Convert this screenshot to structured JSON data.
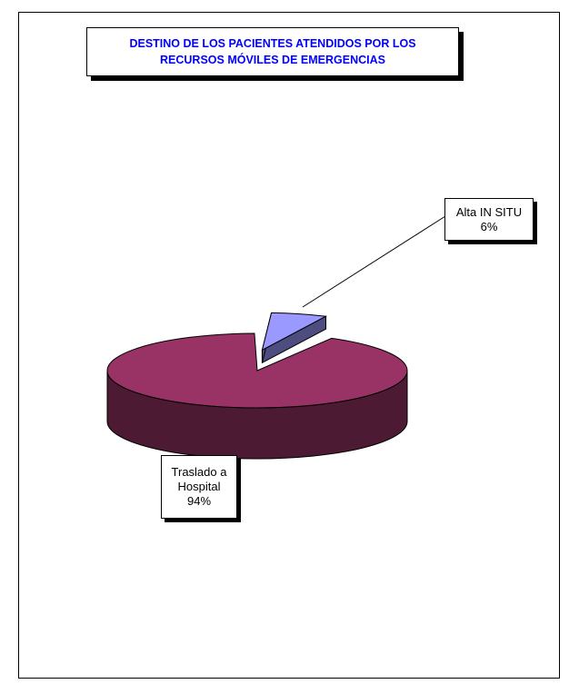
{
  "chart_data": {
    "type": "pie",
    "style": "3d-exploded",
    "title_lines": [
      "DESTINO DE LOS PACIENTES ATENDIDOS POR LOS",
      "RECURSOS MÓVILES DE EMERGENCIAS"
    ],
    "slices": [
      {
        "label_lines": [
          "Traslado a",
          "Hospital"
        ],
        "value": 94,
        "value_label": "94%",
        "color": "#993366",
        "side_color": "#4d1a33"
      },
      {
        "label_lines": [
          "Alta IN SITU"
        ],
        "value": 6,
        "value_label": "6%",
        "color": "#9999ff",
        "side_color": "#4d4d80"
      }
    ],
    "title_color": "#0000ff"
  }
}
